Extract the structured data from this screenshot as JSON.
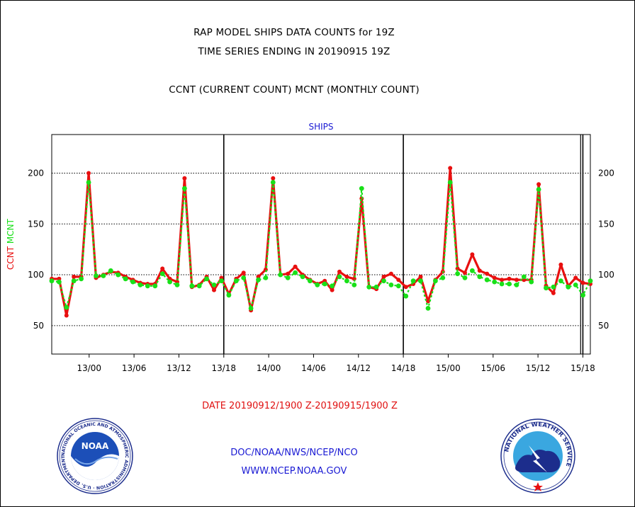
{
  "titles": {
    "line1": "RAP MODEL SHIPS DATA COUNTS for 19Z",
    "line2": "TIME SERIES ENDING IN 20190915 19Z",
    "line3": "CCNT (CURRENT COUNT) MCNT (MONTHLY COUNT)"
  },
  "footer": {
    "date_range": "DATE 20190912/1900 Z-20190915/1900 Z",
    "org": "DOC/NOAA/NWS/NCEP/NCO",
    "url": "WWW.NCEP.NOAA.GOV"
  },
  "logos": {
    "noaa": "NOAA",
    "noaa_ring": "NATIONAL OCEANIC AND ATMOSPHERIC ADMINISTRATION · U.S. DEPARTMENT OF COMMERCE",
    "nws_ring": "NATIONAL WEATHER SERVICE"
  },
  "colors": {
    "ccnt": "#e81010",
    "mcnt": "#18e018",
    "title_blue": "#1a1ad4",
    "gridline": "#000000"
  },
  "chart_data": {
    "type": "line",
    "title": "SHIPS",
    "ylabel_parts": [
      "CCNT",
      "MCNT"
    ],
    "ylim": [
      22,
      238
    ],
    "yticks": [
      50,
      100,
      150,
      200
    ],
    "xlabels": [
      "13/00",
      "13/06",
      "13/12",
      "13/18",
      "14/00",
      "14/06",
      "14/12",
      "14/18",
      "15/00",
      "15/06",
      "15/12",
      "15/18"
    ],
    "x_start_hours_before_13_00": 5,
    "x_end_hours_after_13_00": 67,
    "day_separators_hours": [
      18,
      42,
      66
    ],
    "grid": "horizontal dotted",
    "series": [
      {
        "name": "CCNT",
        "color": "#e81010",
        "values": [
          96,
          96,
          60,
          98,
          98,
          200,
          97,
          100,
          103,
          102,
          98,
          95,
          92,
          91,
          91,
          106,
          96,
          93,
          195,
          88,
          90,
          98,
          85,
          97,
          81,
          96,
          102,
          65,
          98,
          105,
          195,
          100,
          101,
          108,
          100,
          95,
          91,
          94,
          85,
          103,
          98,
          96,
          175,
          88,
          86,
          98,
          101,
          95,
          88,
          91,
          98,
          74,
          95,
          103,
          205,
          106,
          102,
          120,
          104,
          101,
          97,
          95,
          96,
          95,
          95,
          95,
          189,
          89,
          82,
          110,
          89,
          97,
          92,
          91
        ]
      },
      {
        "name": "MCNT",
        "color": "#18e018",
        "values": [
          94,
          93,
          68,
          94,
          96,
          191,
          99,
          99,
          104,
          100,
          96,
          93,
          90,
          89,
          89,
          101,
          93,
          90,
          185,
          89,
          89,
          96,
          90,
          94,
          80,
          94,
          97,
          67,
          95,
          97,
          191,
          100,
          97,
          102,
          98,
          94,
          90,
          91,
          89,
          98,
          94,
          90,
          185,
          88,
          88,
          94,
          90,
          89,
          79,
          94,
          94,
          67,
          94,
          97,
          191,
          101,
          97,
          104,
          98,
          95,
          93,
          91,
          91,
          90,
          98,
          93,
          184,
          87,
          88,
          94,
          88,
          90,
          80,
          94
        ]
      }
    ]
  }
}
